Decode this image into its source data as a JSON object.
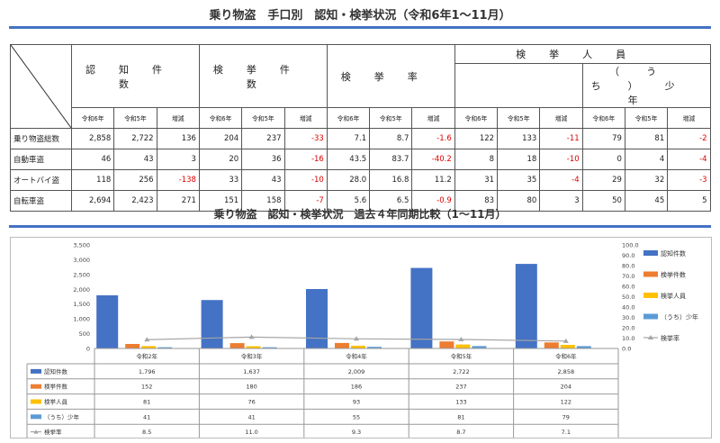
{
  "title": "乗り物盗　手口別　認知・検挙状況（令和6年1～11月）",
  "table": {
    "groups": [
      "認知件数",
      "検挙件数",
      "検挙率",
      "検挙人員"
    ],
    "youth_label": "（うち）少年",
    "sub_headers": [
      "令和6年",
      "令和5年",
      "増減"
    ],
    "rows": [
      {
        "label": "乗り物盗総数",
        "values": [
          "2,858",
          "2,722",
          "136",
          "204",
          "237",
          "-33",
          "7.1",
          "8.7",
          "-1.6",
          "122",
          "133",
          "-11",
          "79",
          "81",
          "-2"
        ]
      },
      {
        "label": "自動車盗",
        "values": [
          "46",
          "43",
          "3",
          "20",
          "36",
          "-16",
          "43.5",
          "83.7",
          "-40.2",
          "8",
          "18",
          "-10",
          "0",
          "4",
          "-4"
        ]
      },
      {
        "label": "オートバイ盗",
        "values": [
          "118",
          "256",
          "-138",
          "33",
          "43",
          "-10",
          "28.0",
          "16.8",
          "11.2",
          "31",
          "35",
          "-4",
          "29",
          "32",
          "-3"
        ]
      },
      {
        "label": "自転車盗",
        "values": [
          "2,694",
          "2,423",
          "271",
          "151",
          "158",
          "-7",
          "5.6",
          "6.5",
          "-0.9",
          "83",
          "80",
          "3",
          "50",
          "45",
          "5"
        ]
      }
    ]
  },
  "chart_title": "乗り物盗　認知・検挙状況　過去４年同期比較（1～11月）",
  "chart_data": {
    "type": "bar",
    "categories": [
      "令和2年",
      "令和3年",
      "令和4年",
      "令和5年",
      "令和6年"
    ],
    "series": [
      {
        "name": "認知件数",
        "type": "bar",
        "axis": "left",
        "color": "#4472c4",
        "values": [
          1796,
          1637,
          2009,
          2722,
          2858
        ],
        "labels": [
          "1,796",
          "1,637",
          "2,009",
          "2,722",
          "2,858"
        ]
      },
      {
        "name": "検挙件数",
        "type": "bar",
        "axis": "left",
        "color": "#ed7d31",
        "values": [
          152,
          180,
          186,
          237,
          204
        ],
        "labels": [
          "152",
          "180",
          "186",
          "237",
          "204"
        ]
      },
      {
        "name": "検挙人員",
        "type": "bar",
        "axis": "left",
        "color": "#ffc000",
        "values": [
          81,
          76,
          93,
          133,
          122
        ],
        "labels": [
          "81",
          "76",
          "93",
          "133",
          "122"
        ]
      },
      {
        "name": "（うち）少年",
        "type": "bar",
        "axis": "left",
        "color": "#5b9bd5",
        "values": [
          41,
          41,
          55,
          81,
          79
        ],
        "labels": [
          "41",
          "41",
          "55",
          "81",
          "79"
        ]
      },
      {
        "name": "検挙率",
        "type": "line",
        "axis": "right",
        "color": "#a5a5a5",
        "values": [
          8.5,
          11.0,
          9.3,
          8.7,
          7.1
        ],
        "labels": [
          "8.5",
          "11.0",
          "9.3",
          "8.7",
          "7.1"
        ]
      }
    ],
    "ylim_left": [
      0,
      3500
    ],
    "yticks_left": [
      "3,500",
      "3,000",
      "2,500",
      "2,000",
      "1,500",
      "1,000",
      "500",
      "0"
    ],
    "ylim_right": [
      0,
      100
    ],
    "yticks_right": [
      "100.0",
      "90.0",
      "80.0",
      "70.0",
      "60.0",
      "50.0",
      "40.0",
      "30.0",
      "20.0",
      "10.0",
      "0.0"
    ],
    "legend": "right",
    "data_table": true
  }
}
